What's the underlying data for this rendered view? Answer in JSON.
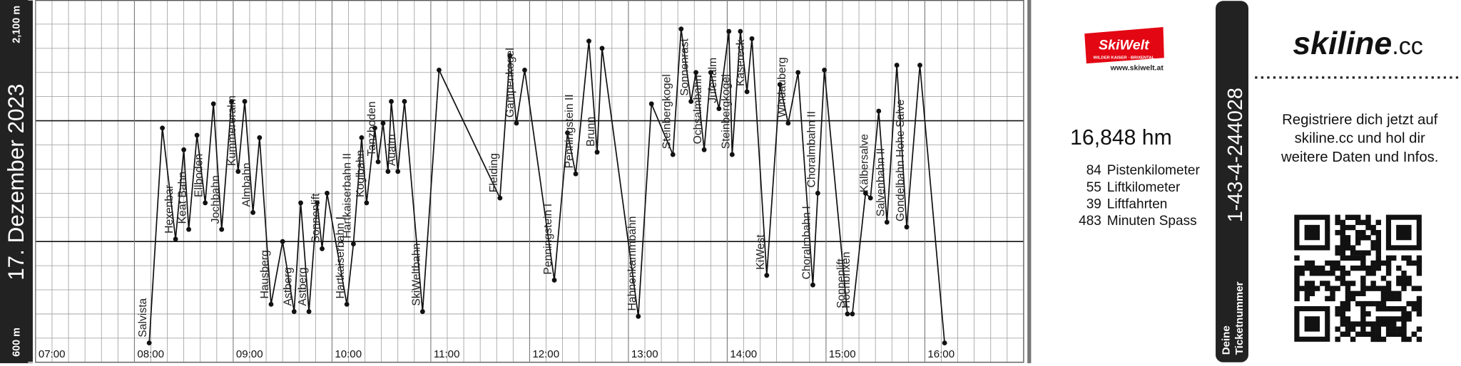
{
  "chart_data": {
    "type": "line",
    "title": "17. Dezember 2023",
    "color": "#111111",
    "grid": true,
    "x": [
      489,
      497,
      505,
      510,
      513,
      518,
      523,
      528,
      533,
      539,
      543,
      547,
      552,
      556,
      563,
      570,
      577,
      581,
      586,
      591,
      594,
      597,
      609,
      613,
      618,
      621,
      626,
      628,
      631,
      634,
      636,
      640,
      644,
      655,
      665,
      702,
      708,
      712,
      717,
      735,
      743,
      748,
      756,
      761,
      764,
      786,
      794,
      807,
      812,
      818,
      821,
      826,
      830,
      835,
      841,
      843,
      848,
      852,
      855,
      864,
      872,
      877,
      883,
      892,
      895,
      899,
      913,
      916,
      924,
      927,
      932,
      937,
      943,
      949,
      957,
      972
    ],
    "values": [
      680,
      1570,
      1110,
      1480,
      1150,
      1540,
      1260,
      1670,
      1150,
      1680,
      1390,
      1680,
      1220,
      1530,
      840,
      1100,
      810,
      1260,
      810,
      1260,
      1070,
      1300,
      840,
      1090,
      1530,
      1260,
      1570,
      1430,
      1590,
      1390,
      1680,
      1390,
      1680,
      810,
      1810,
      1280,
      1870,
      1590,
      1810,
      940,
      1550,
      1380,
      1930,
      1470,
      1900,
      790,
      1670,
      1460,
      1980,
      1680,
      1800,
      1480,
      1800,
      1650,
      1970,
      1460,
      1970,
      1720,
      1940,
      960,
      1750,
      1590,
      1800,
      920,
      1300,
      1810,
      800,
      800,
      1300,
      1280,
      1640,
      1180,
      1830,
      1160,
      1830,
      680
    ],
    "point_labels": [
      "Salvista",
      null,
      "Hexenbar",
      null,
      "Keat Bahn",
      null,
      "Ellboden",
      null,
      "Jochbahn",
      null,
      "Kummereralm",
      null,
      "Almbahn",
      null,
      "Hausberg",
      null,
      "Astberg",
      null,
      "Astberg",
      null,
      "Sonnenlift",
      null,
      "Hartkaiserbahn I",
      "Hartkaiserbahn II",
      null,
      "Koglbahn",
      null,
      "Tanzboden",
      null,
      null,
      null,
      "Aualm",
      null,
      "SkiWeltbahn",
      null,
      "Fleiding",
      null,
      "Gampenkogel",
      null,
      "Penningstein I",
      null,
      "Penningstein II",
      null,
      "Brunn",
      null,
      "Hahnenkammbahn",
      null,
      "Steinbergkogel",
      null,
      "Sonnenrast",
      null,
      "Ochsalmbahn",
      null,
      "Jufenalm",
      null,
      "Steinbergkogel",
      null,
      "Kasereck",
      null,
      "KiWest",
      null,
      "Windauberg",
      null,
      "Choralmbahn I",
      "Choralmbahn II",
      null,
      "Sonnenlift",
      "Hochbrixen",
      null,
      "Kälbersalve",
      null,
      "Salvenbahn II",
      null,
      "Gondelbahn Hohe Salve",
      null,
      null
    ],
    "xlim": [
      420,
      1020
    ],
    "ylim": [
      600,
      2100
    ],
    "xticks": [
      {
        "value": 420,
        "label": "07:00"
      },
      {
        "value": 480,
        "label": "08:00"
      },
      {
        "value": 540,
        "label": "09:00"
      },
      {
        "value": 600,
        "label": "10:00"
      },
      {
        "value": 660,
        "label": "11:00"
      },
      {
        "value": 720,
        "label": "12:00"
      },
      {
        "value": 780,
        "label": "13:00"
      },
      {
        "value": 840,
        "label": "14:00"
      },
      {
        "value": 900,
        "label": "15:00"
      },
      {
        "value": 960,
        "label": "16:00"
      }
    ],
    "yticks": [
      {
        "value": 600,
        "label": "600 m"
      },
      {
        "value": 2100,
        "label": "2,100 m"
      }
    ],
    "major_y_grid": [
      1100,
      1600
    ],
    "minor_grid": {
      "x": 10,
      "y": 100
    }
  },
  "logo": {
    "brand": "SkiWelt",
    "tagline": "WILDER KAISER · BRIXENTAL",
    "url": "www.skiwelt.at"
  },
  "summary": {
    "total": "16,848 hm",
    "stats": [
      {
        "value": 84,
        "label": "Pistenkilometer"
      },
      {
        "value": 55,
        "label": "Liftkilometer"
      },
      {
        "value": 39,
        "label": "Liftfahrten"
      },
      {
        "value": 483,
        "label": "Minuten Spass"
      }
    ]
  },
  "ticket": {
    "number": "1-43-4-244028",
    "caption": [
      "Deine",
      "Ticketnummer"
    ]
  },
  "promo": {
    "brand": "skiline",
    "domain": ".cc",
    "text": [
      "Registriere dich jetzt auf",
      "skiline.cc und hol dir",
      "weitere Daten und Infos."
    ]
  }
}
